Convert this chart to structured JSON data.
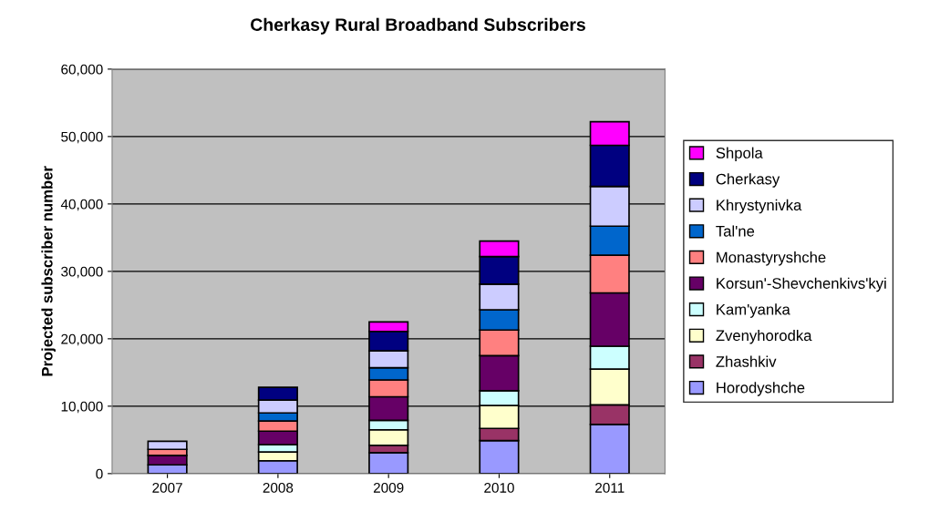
{
  "chart_data": {
    "type": "bar",
    "title": "Cherkasy Rural Broadband Subscribers",
    "ylabel": "Projected subscriber number",
    "categories": [
      "2007",
      "2008",
      "2009",
      "2010",
      "2011"
    ],
    "stacked": true,
    "series": [
      {
        "name": "Horodyshche",
        "color": "#9999ff",
        "values": [
          1300,
          1900,
          3100,
          4900,
          7300
        ]
      },
      {
        "name": "Zhashkiv",
        "color": "#993366",
        "values": [
          null,
          null,
          1100,
          1800,
          2900
        ]
      },
      {
        "name": "Zvenyhorodka",
        "color": "#ffffcc",
        "values": [
          null,
          1300,
          2300,
          3400,
          5300
        ]
      },
      {
        "name": "Kam'yanka",
        "color": "#ccffff",
        "values": [
          null,
          1100,
          1400,
          2200,
          3400
        ]
      },
      {
        "name": "Korsun'-Shevchenkivs'kyi",
        "color": "#660066",
        "values": [
          1400,
          2000,
          3500,
          5200,
          7900
        ]
      },
      {
        "name": "Monastyryshche",
        "color": "#ff8080",
        "values": [
          900,
          1500,
          2500,
          3800,
          5600
        ]
      },
      {
        "name": "Tal'ne",
        "color": "#0066cc",
        "values": [
          null,
          1200,
          1800,
          3000,
          4300
        ]
      },
      {
        "name": "Khrystynivka",
        "color": "#ccccff",
        "values": [
          1200,
          1900,
          2500,
          3800,
          5900
        ]
      },
      {
        "name": "Cherkasy",
        "color": "#000080",
        "values": [
          null,
          1900,
          2900,
          4100,
          6100
        ]
      },
      {
        "name": "Shpola",
        "color": "#ff00ff",
        "values": [
          null,
          null,
          1400,
          2300,
          3500
        ]
      }
    ],
    "ylim": [
      0,
      60000
    ],
    "yticks": [
      {
        "value": 0,
        "label": "0"
      },
      {
        "value": 10000,
        "label": "10,000"
      },
      {
        "value": 20000,
        "label": "20,000"
      },
      {
        "value": 30000,
        "label": "30,000"
      },
      {
        "value": 40000,
        "label": "40,000"
      },
      {
        "value": 50000,
        "label": "50,000"
      },
      {
        "value": 60000,
        "label": "60,000"
      }
    ],
    "grid": "y",
    "legend": "right"
  }
}
